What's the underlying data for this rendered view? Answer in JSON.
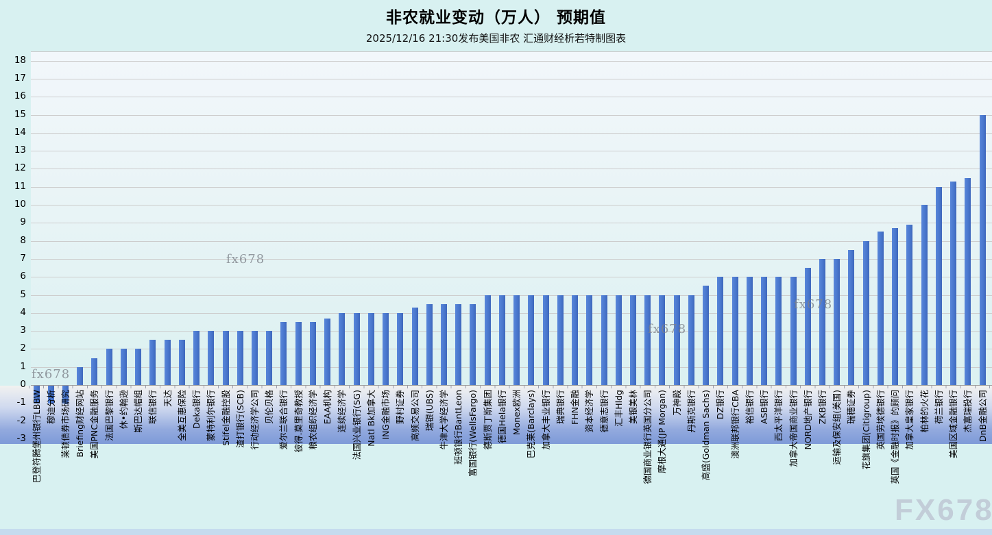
{
  "header": {
    "title": "非农就业变动（万人） 预期值",
    "subtitle": "2025/12/16 21:30发布美国非农 汇通财经析若特制图表"
  },
  "watermarks": {
    "small": "fx678",
    "large": "FX678"
  },
  "chart_data": {
    "type": "bar",
    "title": "非农就业变动（万人） 预期值",
    "subtitle": "2025/12/16 21:30发布美国非农 汇通财经析若特制图表",
    "xlabel": "",
    "ylabel": "",
    "ylim": [
      -3,
      18
    ],
    "yticks": [
      -3,
      -2,
      -1,
      0,
      1,
      2,
      3,
      4,
      5,
      6,
      7,
      8,
      9,
      10,
      11,
      12,
      13,
      14,
      15,
      16,
      17,
      18
    ],
    "grid": true,
    "legend": "none",
    "bar_color": "#4a78ce",
    "categories": [
      "巴登符腾堡州银行LBBW",
      "穆迪分析",
      "莱顿债券市场研究",
      "Briefing财经网站",
      "美国PNC金融服务",
      "法国巴黎银行",
      "休•约翰逊",
      "斯巴达帽组",
      "联信银行",
      "天达",
      "全美互惠保险",
      "Deka银行",
      "蒙特利尔银行",
      "Stifel金融控股",
      "渣打银行(SCB)",
      "行动经济学公司",
      "贝伦贝格",
      "爱尔兰联合银行",
      "彼得.莫里奇教授",
      "粮农组织经济学",
      "EAA机构",
      "连续经济学",
      "法国兴业银行(SG)",
      "Natl Bk加拿大",
      "ING金融市场",
      "野村证券",
      "高频交易公司",
      "瑞银(UBS)",
      "牛津大学经济学",
      "班顿银行BantLeon",
      "富国银行(WellsFargo)",
      "德斯贾丁斯集团",
      "德国Hela银行",
      "Monex欧洲",
      "巴克莱(Barclays)",
      "加拿大丰业银行",
      "瑞典银行",
      "FHN金融",
      "资本经济学",
      "德意志银行",
      "汇丰Hldg",
      "美银美林",
      "德国商业银行英国分公司",
      "摩根大通(JP Morgan)",
      "万神殿",
      "丹斯克银行",
      "高盛(Goldman Sachs)",
      "DZ银行",
      "澳洲联邦银行CBA",
      "裕信银行",
      "ASB银行",
      "西太平洋银行",
      "加拿大帝国商业银行",
      "NORD地产银行",
      "ZKB银行",
      "运输及保安组(美国)",
      "瑞穗证券",
      "花旗集团(Citigroup)",
      "英国劳埃德银行",
      "英国《金融时报》的顾问",
      "加拿大皇家银行",
      "柏林的火花",
      "荷兰银行",
      "美国区域金融银行",
      "杰富瑞投行",
      "DnB金融公司"
    ],
    "values": [
      -1,
      -1,
      -1,
      1,
      1.5,
      2,
      2,
      2,
      2.5,
      2.5,
      2.5,
      3,
      3,
      3,
      3,
      3,
      3,
      3.5,
      3.5,
      3.5,
      3.7,
      4,
      4,
      4,
      4,
      4,
      4.3,
      4.5,
      4.5,
      4.5,
      4.5,
      5,
      5,
      5,
      5,
      5,
      5,
      5,
      5,
      5,
      5,
      5,
      5,
      5,
      5,
      5,
      5.5,
      6,
      6,
      6,
      6,
      6,
      6,
      6.5,
      7,
      7,
      7.5,
      8,
      8.5,
      8.7,
      8.9,
      10,
      11,
      11.3,
      11.5,
      15
    ]
  }
}
